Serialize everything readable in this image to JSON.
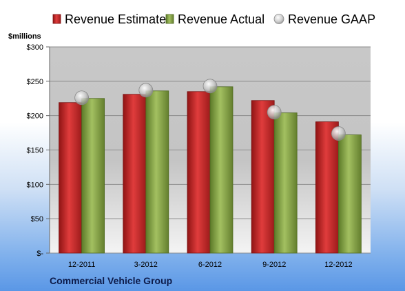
{
  "chart_data": {
    "type": "bar",
    "ylabel": "$millions",
    "ylim": [
      0,
      300
    ],
    "yticks": [
      "$-",
      "$50",
      "$100",
      "$150",
      "$200",
      "$250",
      "$300"
    ],
    "categories": [
      "12-2011",
      "3-2012",
      "6-2012",
      "9-2012",
      "12-2012"
    ],
    "series": [
      {
        "name": "Revenue Estimate",
        "type": "bar",
        "color": "#cc2b2b",
        "values": [
          219,
          231,
          235,
          222,
          191
        ]
      },
      {
        "name": "Revenue Actual",
        "type": "bar",
        "color": "#8aa84a",
        "values": [
          225,
          236,
          242,
          204,
          172
        ]
      },
      {
        "name": "Revenue GAAP",
        "type": "marker",
        "color": "#bfbfbf",
        "values": [
          226,
          237,
          243,
          205,
          174
        ]
      }
    ],
    "legend_position": "top",
    "grid": true
  },
  "footer": {
    "company": "Commercial Vehicle Group"
  }
}
